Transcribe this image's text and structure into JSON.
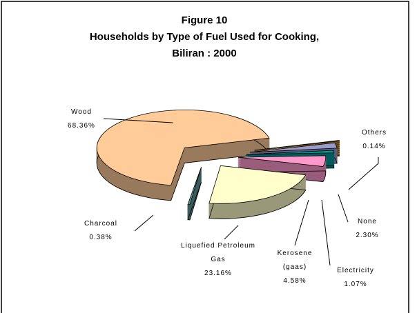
{
  "chart_data": {
    "type": "pie3d",
    "title_lines": [
      "Figure  10",
      "Households by Type of Fuel Used for Cooking,",
      "Biliran : 2000"
    ],
    "categories": [
      "Wood",
      "Charcoal",
      "Liquefied Petroleum Gas",
      "Kerosene (gaas)",
      "Electricity",
      "None",
      "Others"
    ],
    "values": [
      68.36,
      0.38,
      23.16,
      4.58,
      1.07,
      2.3,
      0.14
    ],
    "value_labels": [
      "68.36%",
      "0.38%",
      "23.16%",
      "4.58%",
      "1.07%",
      "2.30%",
      "0.14%"
    ],
    "colors": [
      "#ffcc99",
      "#669999",
      "#ffffcc",
      "#ff99cc",
      "#009999",
      "#9999cc",
      "#996600"
    ]
  }
}
